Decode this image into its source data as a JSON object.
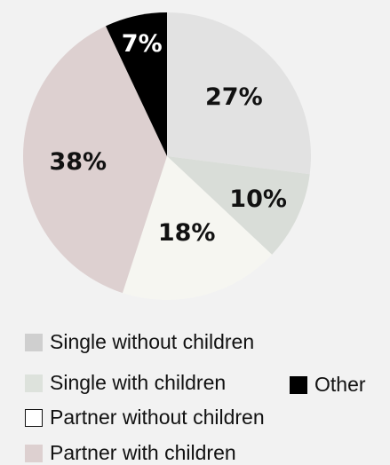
{
  "chart_data": {
    "type": "pie",
    "slices": [
      {
        "label": "Single without children",
        "value": 27,
        "display": "27%",
        "color": "#e2e2e2",
        "text_color": "#111111"
      },
      {
        "label": "Single with children",
        "value": 10,
        "display": "10%",
        "color": "#d9ddd8",
        "text_color": "#111111"
      },
      {
        "label": "Partner without children",
        "value": 18,
        "display": "18%",
        "color": "#f6f6f1",
        "text_color": "#111111"
      },
      {
        "label": "Partner with children",
        "value": 38,
        "display": "38%",
        "color": "#ddd0d0",
        "text_color": "#111111"
      },
      {
        "label": "Other",
        "value": 7,
        "display": "7%",
        "color": "#000000",
        "text_color": "#ffffff"
      }
    ],
    "start": "12 o'clock",
    "direction": "clockwise",
    "legend": {
      "placement": "bottom",
      "items": [
        {
          "label": "Single without children",
          "swatch_color": "#cfcfcf",
          "swatch_border": "none"
        },
        {
          "label": "Single with children",
          "swatch_color": "#dde2dc",
          "swatch_border": "none"
        },
        {
          "label": "Other",
          "swatch_color": "#000000",
          "swatch_border": "none"
        },
        {
          "label": "Partner without children",
          "swatch_color": "#ffffff",
          "swatch_border": "#111111"
        },
        {
          "label": "Partner with children",
          "swatch_color": "#ddd0d0",
          "swatch_border": "none"
        }
      ]
    }
  }
}
